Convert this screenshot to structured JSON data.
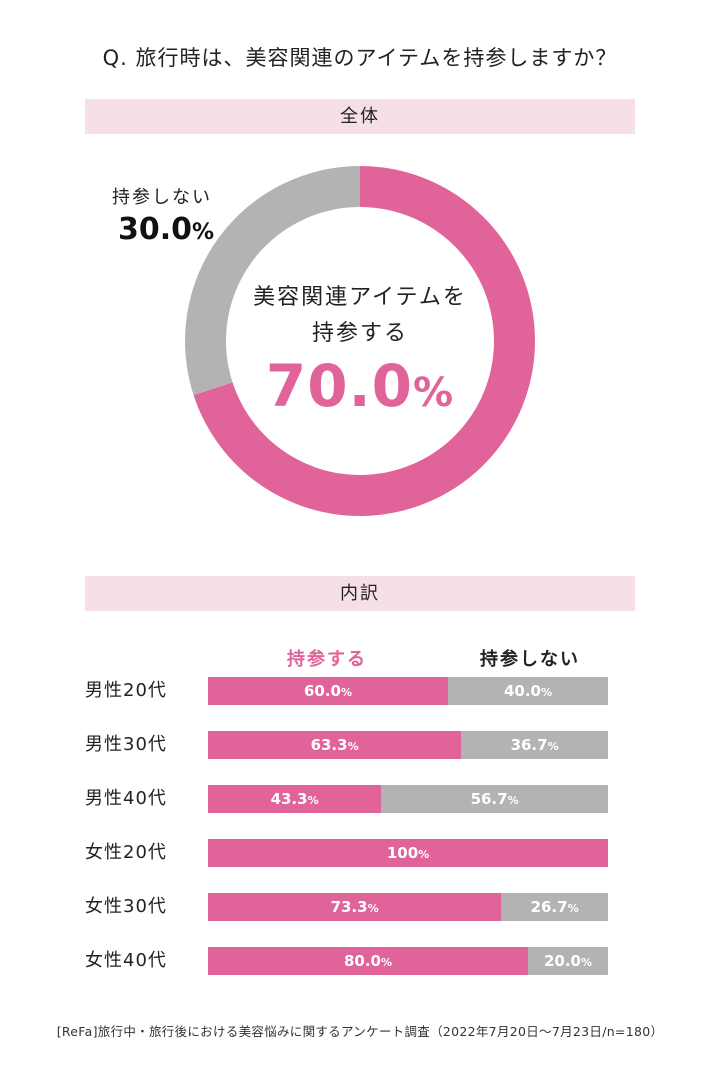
{
  "question": "Q. 旅行時は、美容関連のアイテムを持参しますか？",
  "sections": {
    "overall": "全体",
    "breakdown": "内訳"
  },
  "chart_data": [
    {
      "type": "pie",
      "categories": [
        "美容関連アイテムを持参する",
        "持参しない"
      ],
      "values": [
        70.0,
        30.0
      ],
      "labels": [
        "70.0%",
        "30.0%"
      ],
      "colors": [
        "#e0639a",
        "#b3b3b3"
      ]
    },
    {
      "type": "bar",
      "orientation": "horizontal",
      "stacked": true,
      "categories": [
        "男性20代",
        "男性30代",
        "男性40代",
        "女性20代",
        "女性30代",
        "女性40代"
      ],
      "series": [
        {
          "name": "持参する",
          "values": [
            60.0,
            63.3,
            43.3,
            100,
            73.3,
            80.0
          ],
          "labels": [
            "60.0%",
            "63.3%",
            "43.3%",
            "100%",
            "73.3%",
            "80.0%"
          ],
          "color": "#e0639a"
        },
        {
          "name": "持参しない",
          "values": [
            40.0,
            36.7,
            56.7,
            0,
            26.7,
            20.0
          ],
          "labels": [
            "40.0%",
            "36.7%",
            "56.7%",
            "",
            "26.7%",
            "20.0%"
          ],
          "color": "#b3b3b3"
        }
      ],
      "xlim": [
        0,
        100
      ]
    }
  ],
  "donut": {
    "take_label_line1": "美容関連アイテムを",
    "take_label_line2": "持参する",
    "take_value_main": "70.0",
    "not_label": "持参しない",
    "not_value_main": "30.0"
  },
  "footer": "[ReFa]旅行中・旅行後における美容悩みに関するアンケート調査（2022年7月20日～7月23日/n=180）"
}
